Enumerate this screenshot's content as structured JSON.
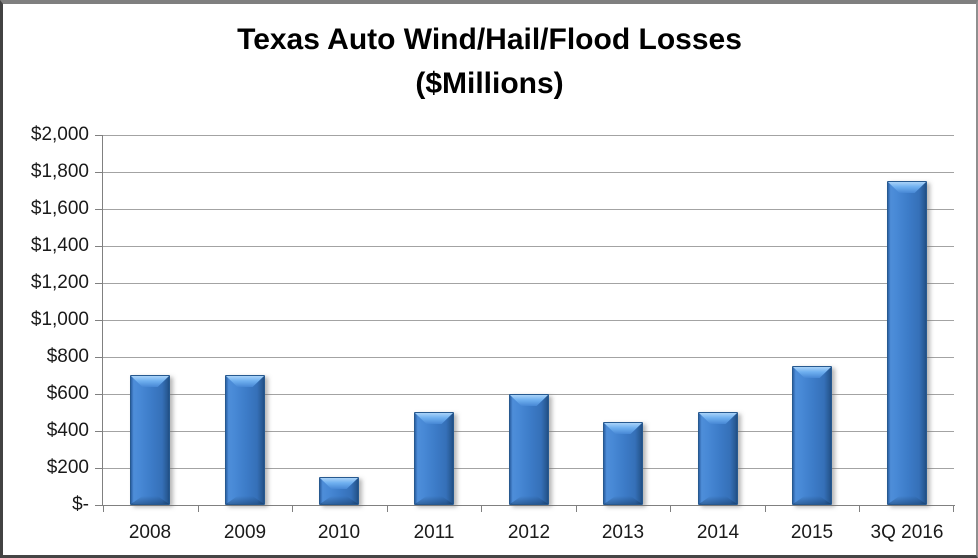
{
  "chart_data": {
    "type": "bar",
    "title": "Texas Auto Wind/Hail/Flood Losses ($Millions)",
    "title_lines": [
      "Texas Auto Wind/Hail/Flood Losses",
      "($Millions)"
    ],
    "categories": [
      "2008",
      "2009",
      "2010",
      "2011",
      "2012",
      "2013",
      "2014",
      "2015",
      "3Q 2016"
    ],
    "values": [
      700,
      700,
      150,
      500,
      600,
      450,
      500,
      750,
      1750
    ],
    "xlabel": "",
    "ylabel": "",
    "ylim": [
      0,
      2000
    ],
    "y_tick_interval": 200,
    "y_tick_labels_bottom_to_top": [
      "$-",
      "$200",
      "$400",
      "$600",
      "$800",
      "$1,000",
      "$1,200",
      "$1,400",
      "$1,600",
      "$1,800",
      "$2,000"
    ],
    "grid": true,
    "legend": false,
    "bar_color": "#3c7bc7",
    "bar_highlight_color": "#a9d2f8",
    "bar_edge_color": "#27598f",
    "gridline_color": "#a3a3a3",
    "axis_color": "#808080",
    "text_color": "#1a1a1a",
    "title_color": "#000000",
    "background_color": "#ffffff"
  }
}
